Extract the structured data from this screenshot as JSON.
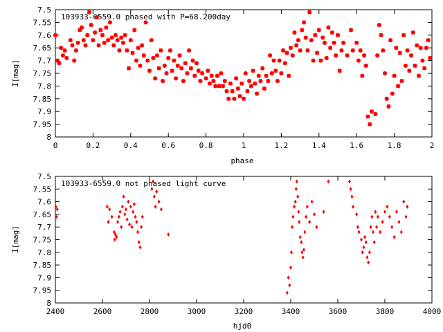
{
  "chart_data": [
    {
      "type": "scatter",
      "title": "103933-6559.0 phased with P=68.200day",
      "xlabel": "phase",
      "ylabel": "I[mag]",
      "xlim": [
        0,
        2
      ],
      "ylim": [
        7.5,
        8
      ],
      "y_inverted": true,
      "x_ticks": [
        0,
        0.2,
        0.4,
        0.6,
        0.8,
        1,
        1.2,
        1.4,
        1.6,
        1.8,
        2
      ],
      "y_ticks": [
        7.5,
        7.55,
        7.6,
        7.65,
        7.7,
        7.75,
        7.8,
        7.85,
        7.9,
        7.95,
        8
      ],
      "x_tick_labels": [
        "0",
        "0.2",
        "0.4",
        "0.6",
        "0.8",
        "1",
        "1.2",
        "1.4",
        "1.6",
        "1.8",
        "2"
      ],
      "y_tick_labels": [
        "7.5",
        "7.55",
        "7.6",
        "7.65",
        "7.7",
        "7.75",
        "7.8",
        "7.85",
        "7.9",
        "7.95",
        "8"
      ],
      "marker": "star",
      "color": "#ff0000",
      "grid": false,
      "points": [
        [
          0.0,
          7.6
        ],
        [
          0.01,
          7.7
        ],
        [
          0.02,
          7.71
        ],
        [
          0.03,
          7.65
        ],
        [
          0.04,
          7.68
        ],
        [
          0.05,
          7.66
        ],
        [
          0.06,
          7.69
        ],
        [
          0.08,
          7.62
        ],
        [
          0.09,
          7.64
        ],
        [
          0.1,
          7.7
        ],
        [
          0.11,
          7.66
        ],
        [
          0.12,
          7.63
        ],
        [
          0.13,
          7.58
        ],
        [
          0.14,
          7.57
        ],
        [
          0.15,
          7.62
        ],
        [
          0.16,
          7.64
        ],
        [
          0.17,
          7.6
        ],
        [
          0.18,
          7.51
        ],
        [
          0.19,
          7.56
        ],
        [
          0.2,
          7.62
        ],
        [
          0.21,
          7.59
        ],
        [
          0.22,
          7.53
        ],
        [
          0.23,
          7.64
        ],
        [
          0.24,
          7.58
        ],
        [
          0.25,
          7.6
        ],
        [
          0.26,
          7.63
        ],
        [
          0.27,
          7.57
        ],
        [
          0.28,
          7.62
        ],
        [
          0.29,
          7.55
        ],
        [
          0.3,
          7.61
        ],
        [
          0.31,
          7.64
        ],
        [
          0.32,
          7.6
        ],
        [
          0.33,
          7.62
        ],
        [
          0.34,
          7.66
        ],
        [
          0.35,
          7.61
        ],
        [
          0.36,
          7.63
        ],
        [
          0.37,
          7.6
        ],
        [
          0.38,
          7.66
        ],
        [
          0.39,
          7.73
        ],
        [
          0.4,
          7.62
        ],
        [
          0.41,
          7.67
        ],
        [
          0.42,
          7.58
        ],
        [
          0.43,
          7.7
        ],
        [
          0.44,
          7.65
        ],
        [
          0.45,
          7.72
        ],
        [
          0.46,
          7.64
        ],
        [
          0.47,
          7.68
        ],
        [
          0.48,
          7.55
        ],
        [
          0.49,
          7.7
        ],
        [
          0.5,
          7.74
        ],
        [
          0.51,
          7.62
        ],
        [
          0.52,
          7.69
        ],
        [
          0.53,
          7.77
        ],
        [
          0.54,
          7.68
        ],
        [
          0.55,
          7.73
        ],
        [
          0.56,
          7.66
        ],
        [
          0.57,
          7.78
        ],
        [
          0.58,
          7.72
        ],
        [
          0.59,
          7.75
        ],
        [
          0.6,
          7.69
        ],
        [
          0.61,
          7.66
        ],
        [
          0.62,
          7.74
        ],
        [
          0.63,
          7.7
        ],
        [
          0.64,
          7.77
        ],
        [
          0.65,
          7.72
        ],
        [
          0.66,
          7.68
        ],
        [
          0.67,
          7.73
        ],
        [
          0.68,
          7.78
        ],
        [
          0.69,
          7.71
        ],
        [
          0.7,
          7.75
        ],
        [
          0.71,
          7.66
        ],
        [
          0.72,
          7.73
        ],
        [
          0.73,
          7.7
        ],
        [
          0.74,
          7.76
        ],
        [
          0.75,
          7.71
        ],
        [
          0.76,
          7.74
        ],
        [
          0.77,
          7.78
        ],
        [
          0.78,
          7.75
        ],
        [
          0.8,
          7.77
        ],
        [
          0.81,
          7.74
        ],
        [
          0.82,
          7.79
        ],
        [
          0.83,
          7.76
        ],
        [
          0.84,
          7.78
        ],
        [
          0.85,
          7.8
        ],
        [
          0.86,
          7.76
        ],
        [
          0.87,
          7.8
        ],
        [
          0.88,
          7.75
        ],
        [
          0.89,
          7.8
        ],
        [
          0.9,
          7.78
        ],
        [
          0.91,
          7.82
        ],
        [
          0.92,
          7.85
        ],
        [
          0.93,
          7.79
        ],
        [
          0.94,
          7.82
        ],
        [
          0.95,
          7.85
        ],
        [
          0.96,
          7.77
        ],
        [
          0.97,
          7.81
        ],
        [
          0.98,
          7.84
        ],
        [
          0.99,
          7.79
        ],
        [
          1.0,
          7.85
        ],
        [
          1.01,
          7.75
        ],
        [
          1.02,
          7.82
        ],
        [
          1.03,
          7.78
        ],
        [
          1.04,
          7.8
        ],
        [
          1.05,
          7.74
        ],
        [
          1.06,
          7.79
        ],
        [
          1.07,
          7.83
        ],
        [
          1.08,
          7.76
        ],
        [
          1.09,
          7.78
        ],
        [
          1.1,
          7.73
        ],
        [
          1.11,
          7.81
        ],
        [
          1.12,
          7.76
        ],
        [
          1.13,
          7.78
        ],
        [
          1.14,
          7.68
        ],
        [
          1.15,
          7.75
        ],
        [
          1.16,
          7.7
        ],
        [
          1.17,
          7.74
        ],
        [
          1.18,
          7.78
        ],
        [
          1.19,
          7.7
        ],
        [
          1.2,
          7.75
        ],
        [
          1.21,
          7.66
        ],
        [
          1.22,
          7.71
        ],
        [
          1.23,
          7.67
        ],
        [
          1.24,
          7.76
        ],
        [
          1.25,
          7.65
        ],
        [
          1.26,
          7.68
        ],
        [
          1.27,
          7.59
        ],
        [
          1.28,
          7.64
        ],
        [
          1.29,
          7.62
        ],
        [
          1.3,
          7.66
        ],
        [
          1.31,
          7.58
        ],
        [
          1.32,
          7.55
        ],
        [
          1.33,
          7.61
        ],
        [
          1.34,
          7.66
        ],
        [
          1.35,
          7.51
        ],
        [
          1.36,
          7.62
        ],
        [
          1.37,
          7.7
        ],
        [
          1.38,
          7.6
        ],
        [
          1.39,
          7.67
        ],
        [
          1.4,
          7.58
        ],
        [
          1.41,
          7.7
        ],
        [
          1.42,
          7.61
        ],
        [
          1.43,
          7.63
        ],
        [
          1.44,
          7.69
        ],
        [
          1.45,
          7.57
        ],
        [
          1.46,
          7.65
        ],
        [
          1.47,
          7.59
        ],
        [
          1.48,
          7.63
        ],
        [
          1.49,
          7.68
        ],
        [
          1.5,
          7.6
        ],
        [
          1.51,
          7.74
        ],
        [
          1.52,
          7.66
        ],
        [
          1.53,
          7.63
        ],
        [
          1.55,
          7.68
        ],
        [
          1.57,
          7.58
        ],
        [
          1.58,
          7.66
        ],
        [
          1.6,
          7.63
        ],
        [
          1.61,
          7.7
        ],
        [
          1.62,
          7.66
        ],
        [
          1.63,
          7.76
        ],
        [
          1.64,
          7.68
        ],
        [
          1.65,
          7.72
        ],
        [
          1.66,
          7.92
        ],
        [
          1.67,
          7.95
        ],
        [
          1.68,
          7.9
        ],
        [
          1.7,
          7.91
        ],
        [
          1.71,
          7.68
        ],
        [
          1.72,
          7.56
        ],
        [
          1.73,
          7.6
        ],
        [
          1.74,
          7.66
        ],
        [
          1.75,
          7.75
        ],
        [
          1.76,
          7.85
        ],
        [
          1.77,
          7.88
        ],
        [
          1.78,
          7.62
        ],
        [
          1.79,
          7.83
        ],
        [
          1.8,
          7.76
        ],
        [
          1.81,
          7.65
        ],
        [
          1.82,
          7.8
        ],
        [
          1.83,
          7.67
        ],
        [
          1.84,
          7.78
        ],
        [
          1.85,
          7.6
        ],
        [
          1.86,
          7.72
        ],
        [
          1.87,
          7.66
        ],
        [
          1.88,
          7.74
        ],
        [
          1.89,
          7.68
        ],
        [
          1.9,
          7.59
        ],
        [
          1.91,
          7.72
        ],
        [
          1.92,
          7.64
        ],
        [
          1.93,
          7.76
        ],
        [
          1.94,
          7.65
        ],
        [
          1.95,
          7.7
        ],
        [
          1.96,
          7.73
        ],
        [
          1.97,
          7.65
        ],
        [
          1.98,
          7.62
        ],
        [
          1.99,
          7.69
        ]
      ]
    },
    {
      "type": "scatter",
      "title": "103933-6559.0 not phased light curve",
      "xlabel": "hjd0",
      "ylabel": "I[mag]",
      "xlim": [
        2400,
        4000
      ],
      "ylim": [
        7.5,
        8
      ],
      "y_inverted": true,
      "x_ticks": [
        2400,
        2600,
        2800,
        3000,
        3200,
        3400,
        3600,
        3800,
        4000
      ],
      "y_ticks": [
        7.5,
        7.55,
        7.6,
        7.65,
        7.7,
        7.75,
        7.8,
        7.85,
        7.9,
        7.95,
        8
      ],
      "x_tick_labels": [
        "2400",
        "2600",
        "2800",
        "3000",
        "3200",
        "3400",
        "3600",
        "3800",
        "4000"
      ],
      "y_tick_labels": [
        "7.5",
        "7.55",
        "7.6",
        "7.65",
        "7.7",
        "7.75",
        "7.8",
        "7.85",
        "7.9",
        "7.95",
        "8"
      ],
      "marker": "diamond",
      "color": "#ff0000",
      "grid": false,
      "points": [
        [
          2402,
          7.62
        ],
        [
          2405,
          7.66
        ],
        [
          2408,
          7.63
        ],
        [
          2620,
          7.62
        ],
        [
          2625,
          7.68
        ],
        [
          2630,
          7.63
        ],
        [
          2640,
          7.66
        ],
        [
          2650,
          7.72
        ],
        [
          2652,
          7.75
        ],
        [
          2655,
          7.73
        ],
        [
          2660,
          7.74
        ],
        [
          2665,
          7.68
        ],
        [
          2670,
          7.66
        ],
        [
          2675,
          7.64
        ],
        [
          2680,
          7.7
        ],
        [
          2685,
          7.62
        ],
        [
          2690,
          7.58
        ],
        [
          2695,
          7.65
        ],
        [
          2700,
          7.63
        ],
        [
          2705,
          7.67
        ],
        [
          2710,
          7.6
        ],
        [
          2715,
          7.69
        ],
        [
          2720,
          7.62
        ],
        [
          2725,
          7.7
        ],
        [
          2730,
          7.64
        ],
        [
          2735,
          7.61
        ],
        [
          2740,
          7.66
        ],
        [
          2745,
          7.68
        ],
        [
          2750,
          7.72
        ],
        [
          2755,
          7.76
        ],
        [
          2760,
          7.78
        ],
        [
          2765,
          7.7
        ],
        [
          2770,
          7.66
        ],
        [
          2810,
          7.55
        ],
        [
          2815,
          7.52
        ],
        [
          2820,
          7.58
        ],
        [
          2825,
          7.62
        ],
        [
          2830,
          7.56
        ],
        [
          2840,
          7.6
        ],
        [
          2850,
          7.63
        ],
        [
          2880,
          7.73
        ],
        [
          3385,
          7.96
        ],
        [
          3390,
          7.9
        ],
        [
          3395,
          7.93
        ],
        [
          3400,
          7.86
        ],
        [
          3403,
          7.8
        ],
        [
          3406,
          7.7
        ],
        [
          3410,
          7.66
        ],
        [
          3415,
          7.62
        ],
        [
          3420,
          7.6
        ],
        [
          3423,
          7.55
        ],
        [
          3426,
          7.52
        ],
        [
          3430,
          7.58
        ],
        [
          3433,
          7.64
        ],
        [
          3436,
          7.68
        ],
        [
          3440,
          7.74
        ],
        [
          3445,
          7.76
        ],
        [
          3448,
          7.8
        ],
        [
          3452,
          7.82
        ],
        [
          3456,
          7.79
        ],
        [
          3460,
          7.72
        ],
        [
          3465,
          7.66
        ],
        [
          3470,
          7.62
        ],
        [
          3480,
          7.68
        ],
        [
          3490,
          7.6
        ],
        [
          3500,
          7.65
        ],
        [
          3510,
          7.7
        ],
        [
          3540,
          7.64
        ],
        [
          3560,
          7.52
        ],
        [
          3650,
          7.52
        ],
        [
          3655,
          7.55
        ],
        [
          3660,
          7.58
        ],
        [
          3665,
          7.62
        ],
        [
          3680,
          7.65
        ],
        [
          3685,
          7.7
        ],
        [
          3690,
          7.72
        ],
        [
          3700,
          7.75
        ],
        [
          3705,
          7.8
        ],
        [
          3710,
          7.78
        ],
        [
          3715,
          7.74
        ],
        [
          3720,
          7.76
        ],
        [
          3725,
          7.82
        ],
        [
          3730,
          7.84
        ],
        [
          3735,
          7.8
        ],
        [
          3740,
          7.7
        ],
        [
          3745,
          7.66
        ],
        [
          3750,
          7.72
        ],
        [
          3755,
          7.76
        ],
        [
          3760,
          7.64
        ],
        [
          3765,
          7.7
        ],
        [
          3770,
          7.66
        ],
        [
          3780,
          7.72
        ],
        [
          3790,
          7.68
        ],
        [
          3800,
          7.64
        ],
        [
          3810,
          7.62
        ],
        [
          3820,
          7.66
        ],
        [
          3830,
          7.7
        ],
        [
          3840,
          7.74
        ],
        [
          3850,
          7.64
        ],
        [
          3860,
          7.68
        ],
        [
          3870,
          7.72
        ],
        [
          3880,
          7.6
        ],
        [
          3890,
          7.66
        ],
        [
          3895,
          7.62
        ]
      ]
    }
  ]
}
